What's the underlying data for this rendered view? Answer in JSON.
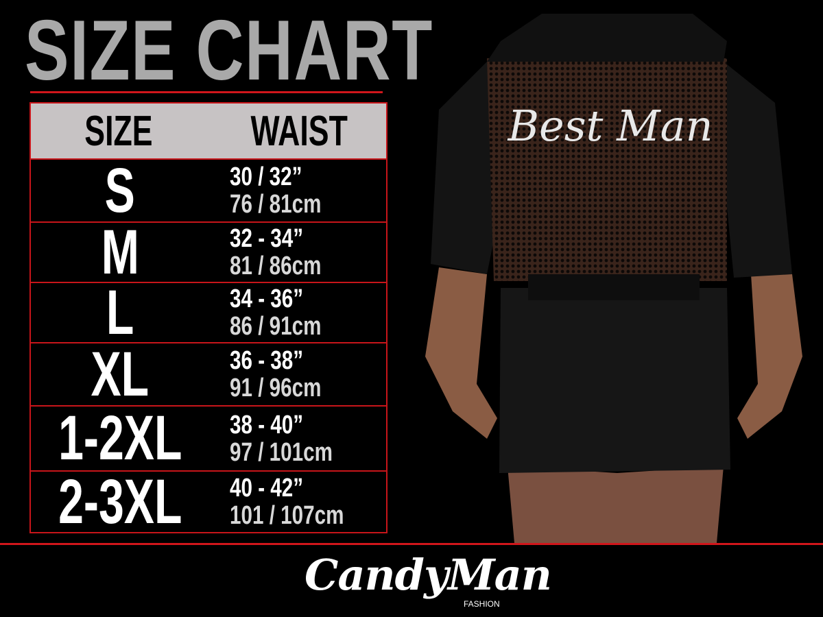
{
  "title": "SIZE CHART",
  "table": {
    "headers": [
      "SIZE",
      "WAIST"
    ],
    "rows": [
      {
        "size": "S",
        "waist_in": "30 / 32”",
        "waist_cm": "76 / 81cm"
      },
      {
        "size": "M",
        "waist_in": "32 - 34”",
        "waist_cm": "81 / 86cm"
      },
      {
        "size": "L",
        "waist_in": "34 - 36”",
        "waist_cm": "86 / 91cm"
      },
      {
        "size": "XL",
        "waist_in": "36 - 38”",
        "waist_cm": "91 / 96cm"
      },
      {
        "size": "1-2XL",
        "waist_in": "38 - 40”",
        "waist_cm": "97 / 101cm"
      },
      {
        "size": "2-3XL",
        "waist_in": "40 - 42”",
        "waist_cm": "101 / 107cm"
      }
    ]
  },
  "product": {
    "back_print": "Best Man"
  },
  "brand": {
    "name": "CandyMan",
    "sub": "FASHION"
  },
  "colors": {
    "accent_red": "#d0161b",
    "header_gray": "#c7c3c4",
    "title_gray": "#a9a9a9",
    "background": "#000000"
  }
}
